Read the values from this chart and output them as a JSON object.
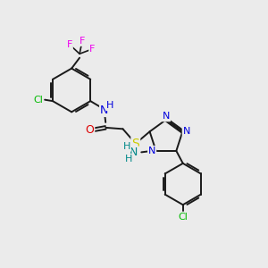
{
  "background_color": "#ebebeb",
  "figsize": [
    3.0,
    3.0
  ],
  "dpi": 100,
  "bond_color": "#1a1a1a",
  "bond_lw": 1.4,
  "atom_bg": "#ebebeb",
  "colors": {
    "C": "#1a1a1a",
    "N": "#0000dd",
    "O": "#dd0000",
    "S": "#cccc00",
    "F": "#ee00ee",
    "Cl": "#00bb00",
    "H": "#008888",
    "NH": "#008888"
  }
}
